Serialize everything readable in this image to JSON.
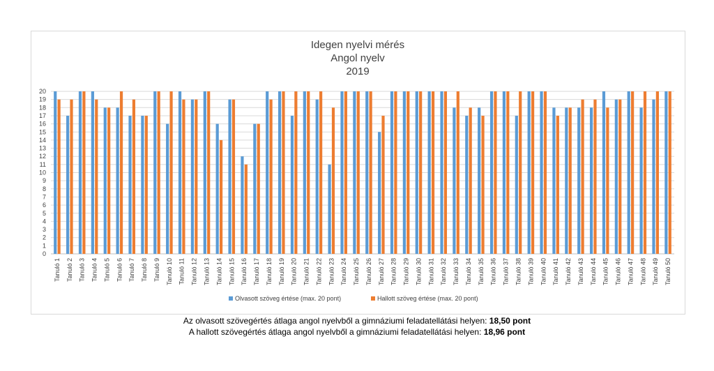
{
  "chart_data": {
    "type": "bar",
    "title": [
      "Idegen nyelvi mérés",
      "Angol nyelv",
      "2019"
    ],
    "xlabel": "",
    "ylabel": "",
    "ylim": [
      0,
      20
    ],
    "yticks": [
      0,
      1,
      2,
      3,
      4,
      5,
      6,
      7,
      8,
      9,
      10,
      11,
      12,
      13,
      14,
      15,
      16,
      17,
      18,
      19,
      20
    ],
    "grid": true,
    "legend_position": "bottom",
    "categories": [
      "Tanuló 1",
      "Tanuló 2",
      "Tanuló 3",
      "Tanuló 4",
      "Tanuló 5",
      "Tanuló 6",
      "Tanuló 7",
      "Tanuló 8",
      "Tanuló 9",
      "Tanuló 10",
      "Tanuló 11",
      "Tanuló 12",
      "Tanuló 13",
      "Tanuló 14",
      "Tanuló 15",
      "Tanuló 16",
      "Tanuló 17",
      "Tanuló 18",
      "Tanuló 19",
      "Tanuló 20",
      "Tanuló 21",
      "Tanuló 22",
      "Tanuló 23",
      "Tanuló 24",
      "Tanuló 25",
      "Tanuló 26",
      "Tanuló 27",
      "Tanuló 28",
      "Tanuló 29",
      "Tanuló 30",
      "Tanuló 31",
      "Tanuló 32",
      "Tanuló 33",
      "Tanuló 34",
      "Tanuló 35",
      "Tanuló 36",
      "Tanuló 37",
      "Tanuló 38",
      "Tanuló 39",
      "Tanuló 40",
      "Tanuló 41",
      "Tanuló 42",
      "Tanuló 43",
      "Tanuló 44",
      "Tanuló 45",
      "Tanuló 46",
      "Tanuló 47",
      "Tanuló 48",
      "Tanuló 49",
      "Tanuló 50"
    ],
    "series": [
      {
        "name": "Olvasott szöveg értése (max. 20 pont)",
        "color": "#5b9bd5",
        "values": [
          20,
          17,
          20,
          20,
          18,
          18,
          17,
          17,
          20,
          16,
          20,
          19,
          20,
          16,
          19,
          12,
          16,
          20,
          20,
          17,
          20,
          19,
          11,
          20,
          20,
          20,
          15,
          20,
          20,
          20,
          20,
          20,
          18,
          17,
          18,
          20,
          20,
          17,
          20,
          20,
          18,
          18,
          18,
          18,
          20,
          19,
          20,
          18,
          19,
          20
        ]
      },
      {
        "name": "Hallott szöveg értése (max. 20 pont)",
        "color": "#ed7d31",
        "values": [
          19,
          19,
          20,
          19,
          18,
          20,
          19,
          17,
          20,
          20,
          19,
          19,
          20,
          14,
          19,
          11,
          16,
          19,
          20,
          20,
          20,
          20,
          18,
          20,
          20,
          20,
          17,
          20,
          20,
          20,
          20,
          20,
          20,
          18,
          17,
          20,
          20,
          20,
          20,
          20,
          17,
          18,
          19,
          19,
          18,
          19,
          20,
          20,
          20,
          20
        ]
      }
    ]
  },
  "footer": {
    "line1_text": "Az olvasott szövegértés átlaga angol nyelvből a gimnáziumi feladatellátási helyen: ",
    "line1_value": "18,50 pont",
    "line2_text": "A hallott szövegértés átlaga angol nyelvből a gimnáziumi feladatellátási helyen: ",
    "line2_value": "18,96 pont"
  }
}
